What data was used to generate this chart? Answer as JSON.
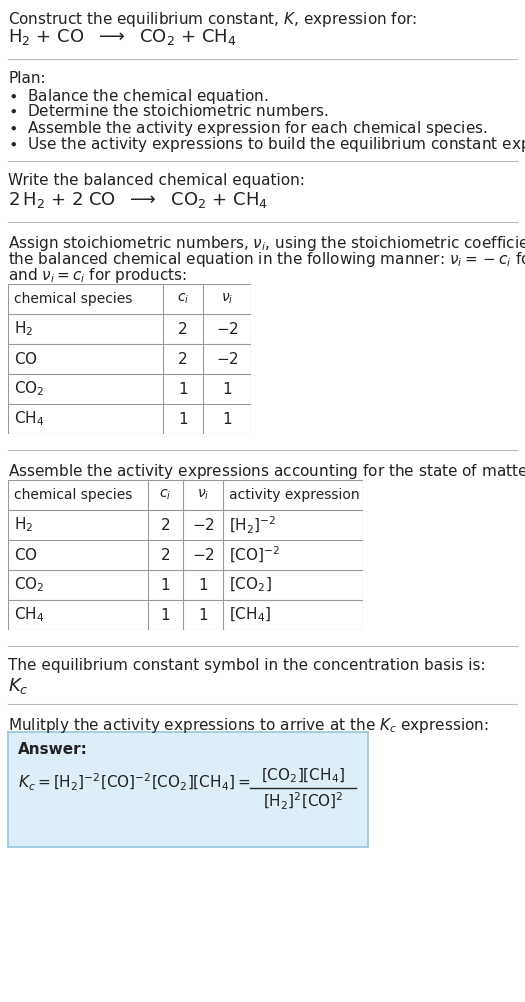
{
  "bg_color": "#ffffff",
  "text_color": "#222222",
  "sep_color": "#bbbbbb",
  "table_color": "#999999",
  "ans_bg": "#ddeef8",
  "ans_border": "#99c4dc",
  "fig_w": 5.25,
  "fig_h": 10.02,
  "dpi": 100
}
